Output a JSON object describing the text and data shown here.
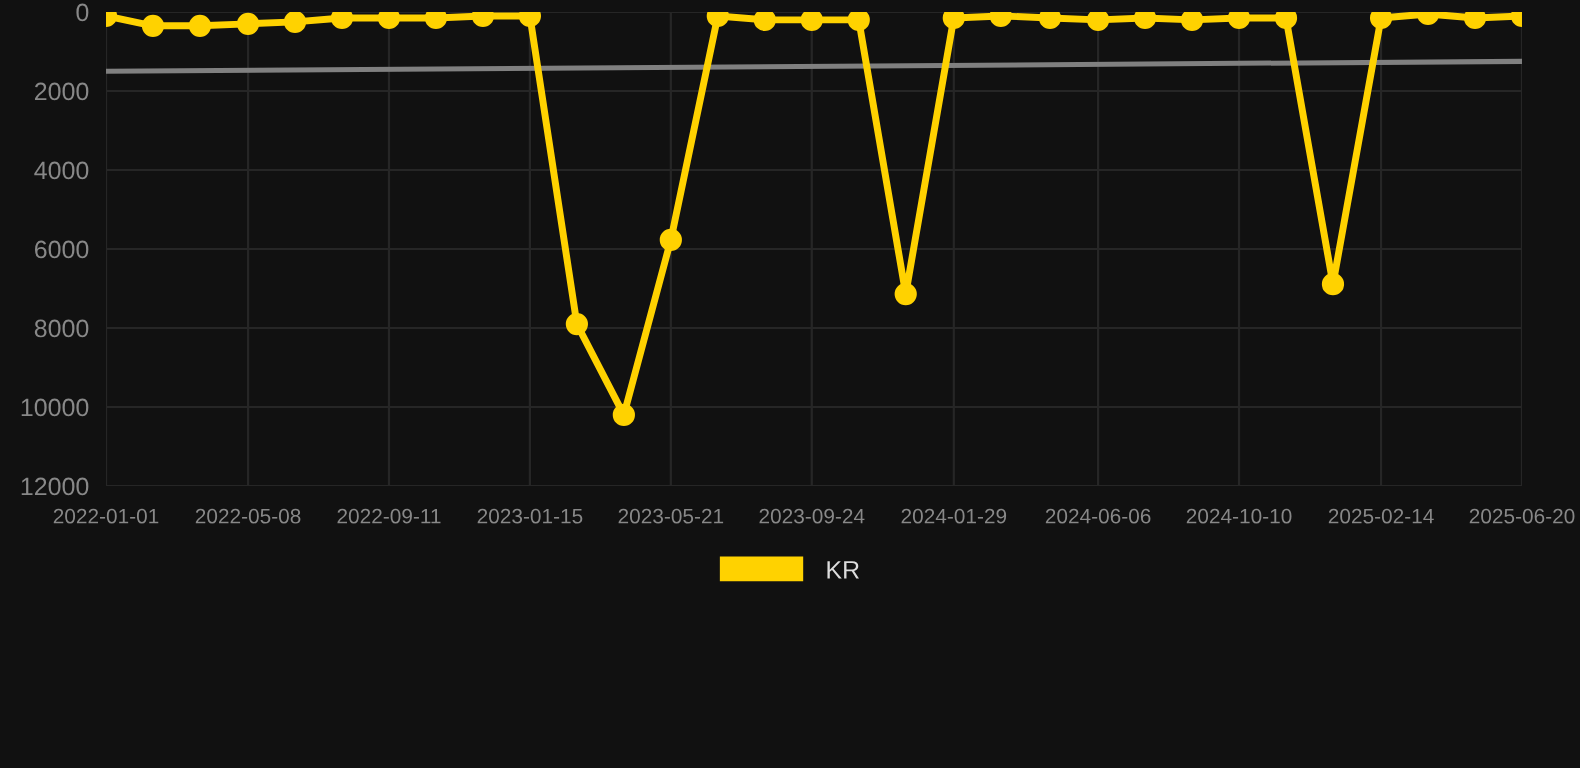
{
  "chart_data": {
    "type": "line",
    "x": [
      "2022-01-01",
      "2022-02-12",
      "2022-03-26",
      "2022-05-08",
      "2022-06-19",
      "2022-07-31",
      "2022-09-11",
      "2022-10-23",
      "2022-12-04",
      "2023-01-15",
      "2023-02-26",
      "2023-04-09",
      "2023-05-21",
      "2023-07-02",
      "2023-08-13",
      "2023-09-24",
      "2023-11-05",
      "2023-12-17",
      "2024-01-29",
      "2024-03-11",
      "2024-04-24",
      "2024-06-06",
      "2024-07-18",
      "2024-08-29",
      "2024-10-10",
      "2024-11-21",
      "2025-01-02",
      "2025-02-14",
      "2025-03-28",
      "2025-05-09",
      "2025-06-20"
    ],
    "series": [
      {
        "name": "KR",
        "color": "#ffd200",
        "marker": "circle",
        "values": [
          100,
          350,
          350,
          300,
          250,
          150,
          150,
          150,
          100,
          100,
          7900,
          10200,
          5770,
          100,
          200,
          200,
          200,
          7140,
          150,
          100,
          150,
          200,
          150,
          200,
          150,
          150,
          6890,
          150,
          50,
          150,
          100
        ]
      },
      {
        "type": "line",
        "color": "#808080",
        "marker": "none",
        "x": [
          "2022-01-01",
          "2025-06-20"
        ],
        "values": [
          1500,
          1250
        ]
      }
    ],
    "ylim": [
      12000,
      0
    ],
    "yticks": [
      0,
      2000,
      4000,
      6000,
      8000,
      10000,
      12000
    ],
    "xlim": [
      "2022-01-01",
      "2025-06-20"
    ],
    "xticks": [
      "2022-01-01",
      "2022-05-08",
      "2022-09-11",
      "2023-01-15",
      "2023-05-21",
      "2023-09-24",
      "2024-01-29",
      "2024-06-06",
      "2024-10-10",
      "2025-02-14",
      "2025-06-20"
    ],
    "grid": true,
    "legend": "bottom",
    "line_style": "solid"
  }
}
